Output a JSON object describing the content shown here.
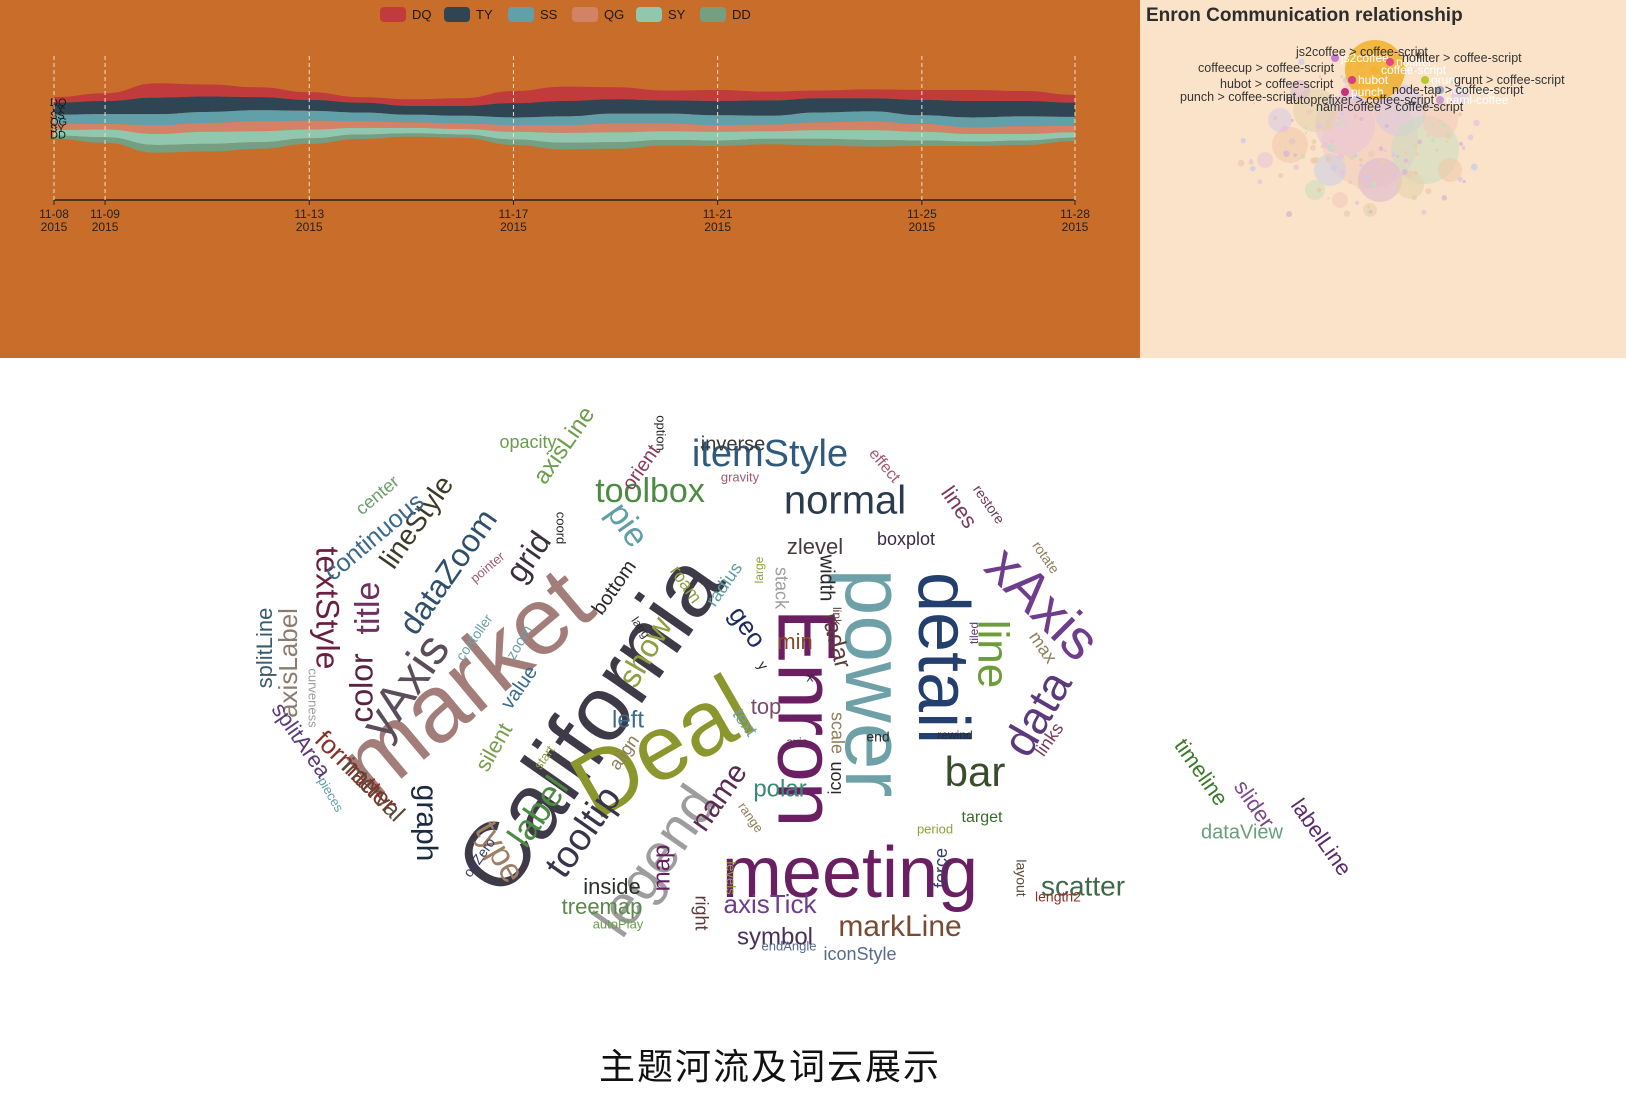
{
  "caption": "主题河流及词云展示",
  "chart_data": [
    {
      "type": "area",
      "subtype": "themeRiver",
      "legend_position": "top-center",
      "series": [
        {
          "name": "DQ",
          "color": "#c23b3c",
          "values": [
            10,
            14,
            26,
            22,
            18,
            14,
            10,
            12,
            14,
            22,
            26,
            22,
            18,
            20,
            16,
            14,
            16,
            18,
            20,
            18,
            14
          ]
        },
        {
          "name": "TY",
          "color": "#2f4554",
          "values": [
            22,
            24,
            30,
            28,
            24,
            20,
            18,
            16,
            18,
            26,
            28,
            26,
            24,
            26,
            28,
            26,
            24,
            28,
            30,
            28,
            26
          ]
        },
        {
          "name": "SS",
          "color": "#61a0a8",
          "values": [
            16,
            18,
            20,
            20,
            20,
            18,
            16,
            14,
            14,
            14,
            16,
            18,
            18,
            18,
            16,
            18,
            18,
            16,
            18,
            18,
            16
          ]
        },
        {
          "name": "QG",
          "color": "#d48265",
          "values": [
            12,
            10,
            16,
            16,
            18,
            16,
            12,
            10,
            10,
            12,
            14,
            16,
            14,
            12,
            12,
            14,
            16,
            14,
            12,
            14,
            12
          ]
        },
        {
          "name": "SY",
          "color": "#91c7ae",
          "values": [
            10,
            14,
            20,
            22,
            20,
            16,
            12,
            10,
            10,
            14,
            18,
            18,
            16,
            16,
            14,
            16,
            18,
            16,
            14,
            12,
            10
          ]
        },
        {
          "name": "DD",
          "color": "#749f83",
          "values": [
            6,
            10,
            14,
            14,
            12,
            10,
            8,
            6,
            6,
            10,
            12,
            12,
            10,
            10,
            10,
            12,
            12,
            10,
            8,
            8,
            6
          ]
        }
      ],
      "x_ticks": [
        {
          "day": 8,
          "line1": "11-08",
          "line2": "2015"
        },
        {
          "day": 9,
          "line1": "11-09",
          "line2": "2015"
        },
        {
          "day": 13,
          "line1": "11-13",
          "line2": "2015"
        },
        {
          "day": 17,
          "line1": "11-17",
          "line2": "2015"
        },
        {
          "day": 21,
          "line1": "11-21",
          "line2": "2015"
        },
        {
          "day": 25,
          "line1": "11-25",
          "line2": "2015"
        },
        {
          "day": 28,
          "line1": "11-28",
          "line2": "2015"
        }
      ],
      "x_range_days": [
        8,
        28
      ]
    },
    {
      "type": "graph",
      "title": "Enron Communication relationship",
      "nodes": [
        {
          "name": "coffee-script",
          "color": "#f2b233"
        },
        {
          "name": "js2coffee",
          "color": "#c77dd3"
        },
        {
          "name": "hubot",
          "color": "#d6407b"
        },
        {
          "name": "nofilter",
          "color": "#e5497f"
        },
        {
          "name": "punch",
          "color": "#c4317d"
        },
        {
          "name": "grunt",
          "color": "#b8c72e"
        },
        {
          "name": "node-tap",
          "color": "#9aa6c8"
        },
        {
          "name": "nami-coffee",
          "color": "#c79cd2"
        }
      ],
      "labels": [
        "coffeecup > coffee-script",
        "js2coffee > coffee-script",
        "hubot > coffee-script",
        "punch > coffee-script",
        "nami-coffee > coffee-script",
        "grunt > coffee-script",
        "nofilter > coffee-script",
        "autoprefixer > coffee-script",
        "node-tap > coffee-script"
      ]
    },
    {
      "type": "wordcloud",
      "words": [
        {
          "text": "California",
          "color": "#3f3a47"
        },
        {
          "text": "market",
          "color": "#a27d79"
        },
        {
          "text": "Deal",
          "color": "#8b962c"
        },
        {
          "text": "Enron",
          "color": "#6a1f63"
        },
        {
          "text": "power",
          "color": "#6ea0a8"
        },
        {
          "text": "detail",
          "color": "#233f6e"
        },
        {
          "text": "meeting",
          "color": "#6a1f63"
        },
        {
          "text": "normal",
          "color": "#2a3b50"
        },
        {
          "text": "itemStyle",
          "color": "#2f5a7d"
        },
        {
          "text": "xAxis",
          "color": "#6e3d8c"
        },
        {
          "text": "legend",
          "color": "#9e9c9e"
        },
        {
          "text": "yAxis",
          "color": "#5b4d5a"
        },
        {
          "text": "toolbox",
          "color": "#4d8a43"
        },
        {
          "text": "line",
          "color": "#6d9c3a"
        },
        {
          "text": "data",
          "color": "#5a3a7d"
        },
        {
          "text": "bar",
          "color": "#394c2c"
        },
        {
          "text": "tooltip",
          "color": "#38344a"
        },
        {
          "text": "textStyle",
          "color": "#6a1f40"
        },
        {
          "text": "title",
          "color": "#6e3060"
        },
        {
          "text": "label",
          "color": "#4d8a43"
        },
        {
          "text": "dataZoom",
          "color": "#2f4f6e"
        },
        {
          "text": "color",
          "color": "#5a2342"
        },
        {
          "text": "grid",
          "color": "#3a2f3c"
        },
        {
          "text": "pie",
          "color": "#5e9ea4"
        },
        {
          "text": "lineStyle",
          "color": "#3d3a28"
        },
        {
          "text": "type",
          "color": "#9e7f64"
        },
        {
          "text": "graph",
          "color": "#1e2a40"
        },
        {
          "text": "markLine",
          "color": "#7a4a32"
        },
        {
          "text": "show",
          "color": "#8ea040"
        },
        {
          "text": "name",
          "color": "#5a2b52"
        },
        {
          "text": "scatter",
          "color": "#3e6a49"
        },
        {
          "text": "axisTick",
          "color": "#6e3d8c"
        },
        {
          "text": "continuous",
          "color": "#3a6a8e"
        },
        {
          "text": "axisLabel",
          "color": "#8c7b6e"
        },
        {
          "text": "formatter",
          "color": "#8a2f28"
        },
        {
          "text": "interval",
          "color": "#5a4a3a"
        },
        {
          "text": "polar",
          "color": "#3a8a73"
        },
        {
          "text": "axisLine",
          "color": "#6a9e4a"
        },
        {
          "text": "symbol",
          "color": "#4a2f5a"
        },
        {
          "text": "map",
          "color": "#6a1f63"
        },
        {
          "text": "treemap",
          "color": "#5a8a4a"
        },
        {
          "text": "inside",
          "color": "#2a2f2a"
        },
        {
          "text": "splitLine",
          "color": "#3a5a6e"
        },
        {
          "text": "splitArea",
          "color": "#5a3a7d"
        },
        {
          "text": "timeline",
          "color": "#3a7a2a"
        },
        {
          "text": "slider",
          "color": "#7a4a8a"
        },
        {
          "text": "labelLine",
          "color": "#5a2b6e"
        },
        {
          "text": "dataView",
          "color": "#6a9e7a"
        },
        {
          "text": "geo",
          "color": "#1e2a60"
        },
        {
          "text": "zlevel",
          "color": "#4a3a3a"
        },
        {
          "text": "radar",
          "color": "#5a3a3a"
        },
        {
          "text": "left",
          "color": "#3a6a8e"
        },
        {
          "text": "top",
          "color": "#7a4a6e"
        },
        {
          "text": "min",
          "color": "#8a4a2a"
        },
        {
          "text": "width",
          "color": "#2a2a2a"
        },
        {
          "text": "lines",
          "color": "#7a3a5a"
        },
        {
          "text": "boxplot",
          "color": "#3a2a4a"
        },
        {
          "text": "iconStyle",
          "color": "#5a6a8e"
        },
        {
          "text": "inverse",
          "color": "#3a3a3a"
        },
        {
          "text": "opacity",
          "color": "#6a9e4a"
        },
        {
          "text": "orient",
          "color": "#8a3a5a"
        },
        {
          "text": "bottom",
          "color": "#2a2a2a"
        },
        {
          "text": "value",
          "color": "#3a6a8e"
        },
        {
          "text": "silent",
          "color": "#7a9e4a"
        },
        {
          "text": "align",
          "color": "#8e7e5a"
        },
        {
          "text": "text",
          "color": "#6ea0a8"
        },
        {
          "text": "icon",
          "color": "#2a2a2a"
        },
        {
          "text": "scale",
          "color": "#8e7e5a"
        },
        {
          "text": "stack",
          "color": "#9e9c9e"
        },
        {
          "text": "roam",
          "color": "#8ea040"
        },
        {
          "text": "radius",
          "color": "#5e9ea4"
        },
        {
          "text": "center",
          "color": "#6a9e6a"
        },
        {
          "text": "effect",
          "color": "#a05a6e"
        },
        {
          "text": "gravity",
          "color": "#a05a6e"
        },
        {
          "text": "restore",
          "color": "#6a3a5a"
        },
        {
          "text": "rotate",
          "color": "#8e7e5a"
        },
        {
          "text": "max",
          "color": "#8e7e5a"
        },
        {
          "text": "links",
          "color": "#7a3a5a"
        },
        {
          "text": "target",
          "color": "#3a6a2a"
        },
        {
          "text": "period",
          "color": "#8ea040"
        },
        {
          "text": "force",
          "color": "#3a3a6a"
        },
        {
          "text": "layout",
          "color": "#5a4a3a"
        },
        {
          "text": "length2",
          "color": "#8a2f28"
        },
        {
          "text": "right",
          "color": "#5a3a3a"
        },
        {
          "text": "levels",
          "color": "#8ea040"
        },
        {
          "text": "range",
          "color": "#8e7e5a"
        },
        {
          "text": "autoPlay",
          "color": "#6a9e4a"
        },
        {
          "text": "endAngle",
          "color": "#5a6a8e"
        },
        {
          "text": "pieces",
          "color": "#5e9ea4"
        },
        {
          "text": "curveness",
          "color": "#9e9c9e"
        },
        {
          "text": "contoller",
          "color": "#6ea0a8"
        },
        {
          "text": "zoom",
          "color": "#6ea0a8"
        },
        {
          "text": "lang",
          "color": "#2a2a2a"
        },
        {
          "text": "pointer",
          "color": "#a05a6e"
        },
        {
          "text": "coord",
          "color": "#2a2a2a"
        },
        {
          "text": "option",
          "color": "#2a2a2a"
        },
        {
          "text": "large",
          "color": "#8ea040"
        },
        {
          "text": "link",
          "color": "#5a3a3a"
        },
        {
          "text": "x",
          "color": "#2a2a2a"
        },
        {
          "text": "y",
          "color": "#2a2a2a"
        },
        {
          "text": "tiled",
          "color": "#5a3a7d"
        },
        {
          "text": "end",
          "color": "#2a2a2a"
        },
        {
          "text": "rewind",
          "color": "#2a2a2a"
        },
        {
          "text": "axis",
          "color": "#5a2b52"
        },
        {
          "text": "start",
          "color": "#8ea040"
        },
        {
          "text": "onZero",
          "color": "#3a3a6a"
        }
      ]
    }
  ]
}
